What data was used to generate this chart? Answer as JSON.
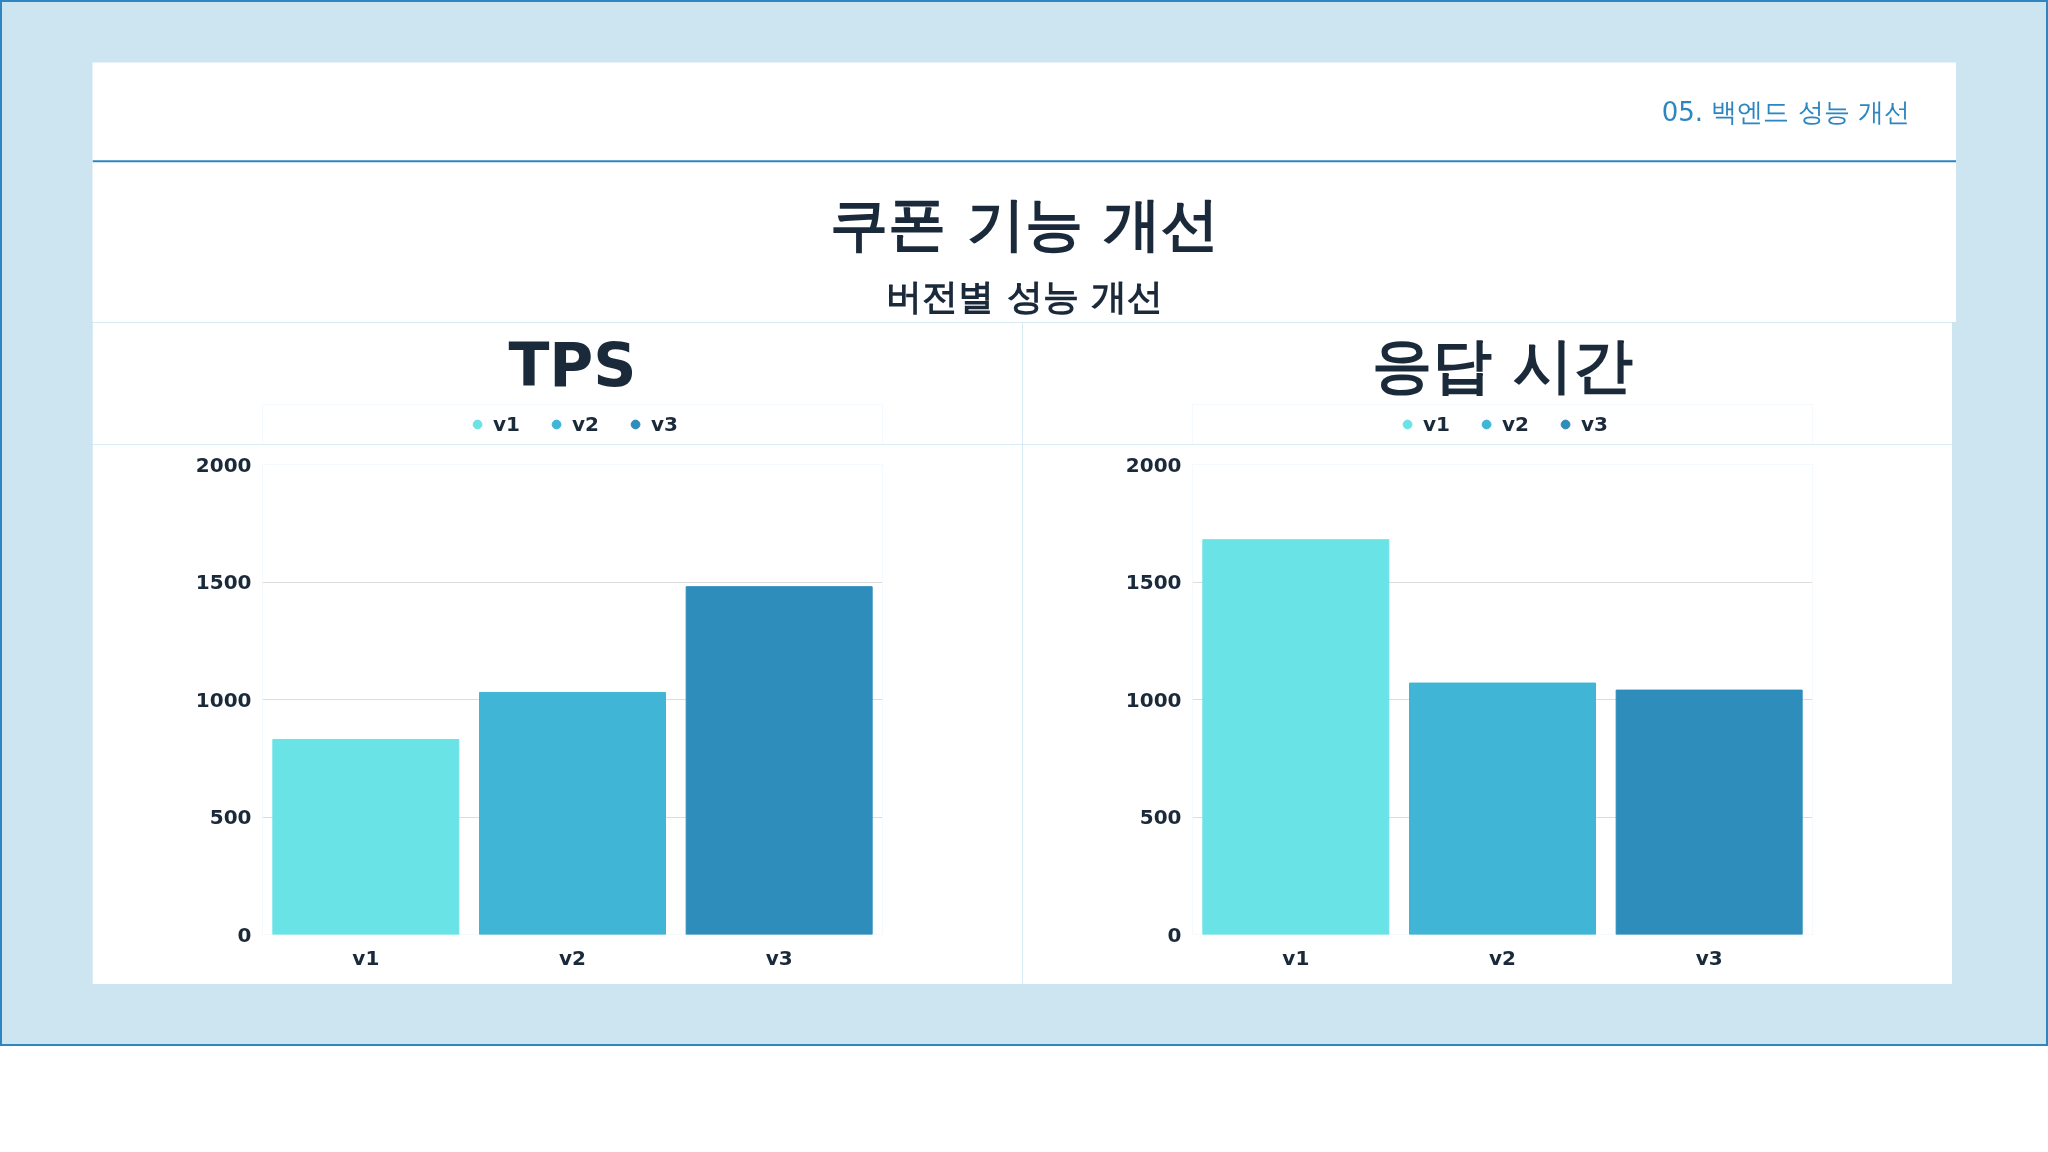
{
  "chart_data": [
    {
      "type": "other",
      "title": "쿠폰 기능 개선",
      "subtitle": "버전별 성능 개선",
      "annotations": [
        "05. 백엔드 성능 개선"
      ]
    },
    {
      "type": "bar",
      "title": "TPS",
      "categories": [
        "v1",
        "v2",
        "v3"
      ],
      "stacked": true,
      "series": [
        {
          "name": "v1",
          "color": "#6ae3e6",
          "values": [
            830,
            null,
            null
          ]
        },
        {
          "name": "v2",
          "color": "#40b5d6",
          "values": [
            null,
            1030,
            null
          ]
        },
        {
          "name": "v3",
          "color": "#2e8dbb",
          "values": [
            null,
            null,
            1480
          ]
        }
      ],
      "ylim": [
        0,
        2000
      ],
      "yticks": [
        0,
        500,
        1000,
        1500,
        2000
      ],
      "grid": "y",
      "legend": "top"
    },
    {
      "type": "bar",
      "title": "응답 시간",
      "categories": [
        "v1",
        "v2",
        "v3"
      ],
      "stacked": true,
      "series": [
        {
          "name": "v1",
          "color": "#6ae3e6",
          "values": [
            1680,
            null,
            null
          ]
        },
        {
          "name": "v2",
          "color": "#40b5d6",
          "values": [
            null,
            1070,
            null
          ]
        },
        {
          "name": "v3",
          "color": "#2e8dbb",
          "values": [
            null,
            null,
            1040
          ]
        }
      ],
      "ylim": [
        0,
        2000
      ],
      "yticks": [
        0,
        500,
        1000,
        1500,
        2000
      ],
      "grid": "y",
      "legend": "top"
    }
  ]
}
